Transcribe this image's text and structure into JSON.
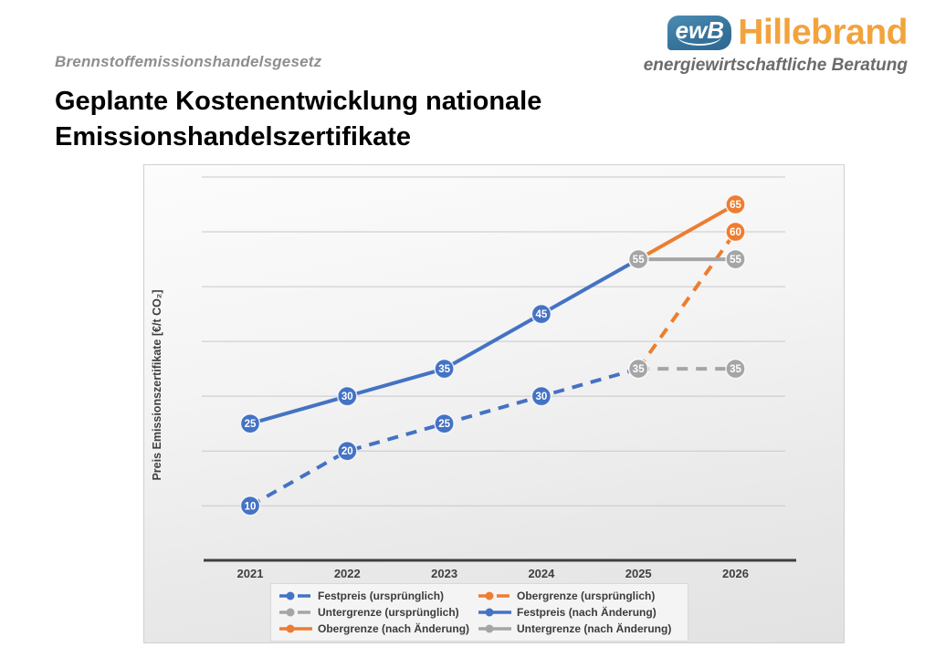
{
  "header": {
    "eyebrow": "Brennstoffemissionshandelsgesetz",
    "title_line1": "Geplante Kostenentwicklung nationale",
    "title_line2": "Emissionshandelszertifikate"
  },
  "logo": {
    "badge": "ewB",
    "name": "Hillebrand",
    "tagline": "energiewirtschaftliche Beratung",
    "badge_color": "#36749C",
    "name_color": "#F2A33C",
    "tagline_color": "#6B6B6B"
  },
  "chart_data": {
    "type": "line",
    "x": [
      "2021",
      "2022",
      "2023",
      "2024",
      "2025",
      "2026"
    ],
    "xlabel": "",
    "ylabel": "Preis Emissionszertifikate [€/t CO₂]",
    "ylim": [
      0,
      70
    ],
    "grid": true,
    "grid_step": 10,
    "legend_position": "bottom",
    "data_labels": true,
    "axis_color": "#3f3f3f",
    "grid_color": "#c8c8c8",
    "series": [
      {
        "name": "Festpreis (ursprünglich)",
        "color": "#4472C4",
        "style": "dashed",
        "x": [
          "2021",
          "2022",
          "2023",
          "2024",
          "2025"
        ],
        "values": [
          10,
          20,
          25,
          30,
          35
        ]
      },
      {
        "name": "Obergrenze (ursprünglich)",
        "color": "#ED7D31",
        "style": "dashed",
        "x": [
          "2025",
          "2026"
        ],
        "values": [
          35,
          60
        ]
      },
      {
        "name": "Untergrenze (ursprünglich)",
        "color": "#A5A5A5",
        "style": "dashed",
        "x": [
          "2025",
          "2026"
        ],
        "values": [
          35,
          35
        ]
      },
      {
        "name": "Festpreis (nach Änderung)",
        "color": "#4472C4",
        "style": "solid",
        "x": [
          "2021",
          "2022",
          "2023",
          "2024",
          "2025"
        ],
        "values": [
          25,
          30,
          35,
          45,
          55
        ]
      },
      {
        "name": "Obergrenze (nach Änderung)",
        "color": "#ED7D31",
        "style": "solid",
        "x": [
          "2025",
          "2026"
        ],
        "values": [
          55,
          65
        ]
      },
      {
        "name": "Untergrenze (nach Änderung)",
        "color": "#A5A5A5",
        "style": "solid",
        "x": [
          "2025",
          "2026"
        ],
        "values": [
          55,
          55
        ]
      }
    ]
  }
}
